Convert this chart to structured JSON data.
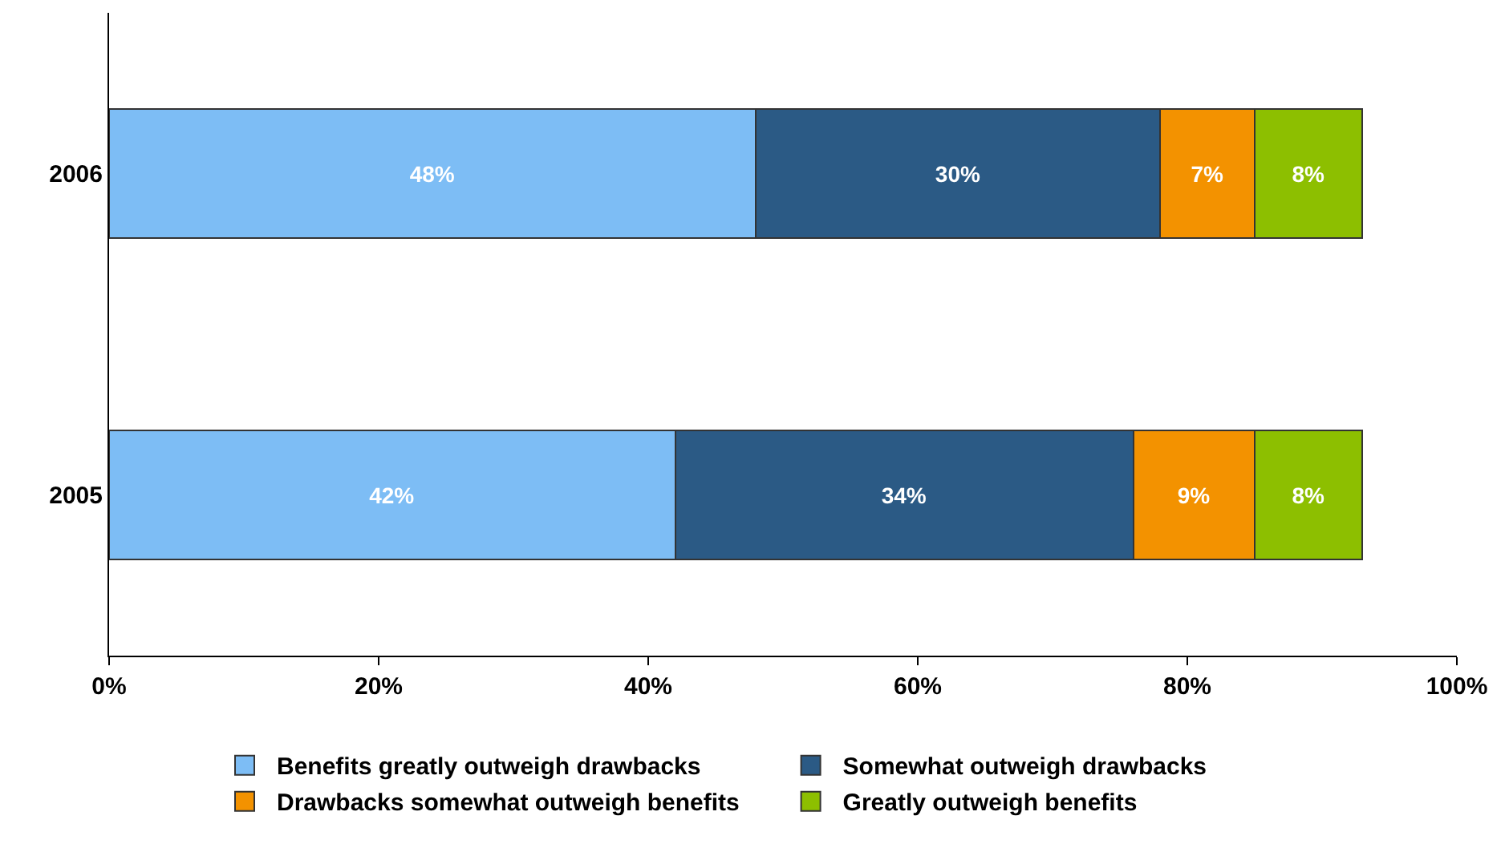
{
  "chart_data": {
    "type": "bar",
    "orientation": "horizontal",
    "stacked": true,
    "categories": [
      "2006",
      "2005"
    ],
    "series": [
      {
        "name": "Benefits greatly outweigh drawbacks",
        "color": "#7dbdf5",
        "values": [
          48,
          42
        ],
        "value_labels": [
          "48%",
          "42%"
        ]
      },
      {
        "name": "Somewhat outweigh drawbacks",
        "color": "#2b5a85",
        "values": [
          30,
          34
        ],
        "value_labels": [
          "30%",
          "34%"
        ]
      },
      {
        "name": "Drawbacks somewhat outweigh benefits",
        "color": "#f39200",
        "values": [
          7,
          9
        ],
        "value_labels": [
          "7%",
          "9%"
        ]
      },
      {
        "name": "Greatly outweigh benefits",
        "color": "#8dbf00",
        "values": [
          8,
          8
        ],
        "value_labels": [
          "8%",
          "8%"
        ]
      }
    ],
    "xlim": [
      0,
      100
    ],
    "xticks": [
      {
        "value": 0,
        "label": "0%"
      },
      {
        "value": 20,
        "label": "20%"
      },
      {
        "value": 40,
        "label": "40%"
      },
      {
        "value": 60,
        "label": "60%"
      },
      {
        "value": 80,
        "label": "80%"
      },
      {
        "value": 100,
        "label": "100%"
      }
    ],
    "grid": false,
    "legend": "bottom"
  }
}
